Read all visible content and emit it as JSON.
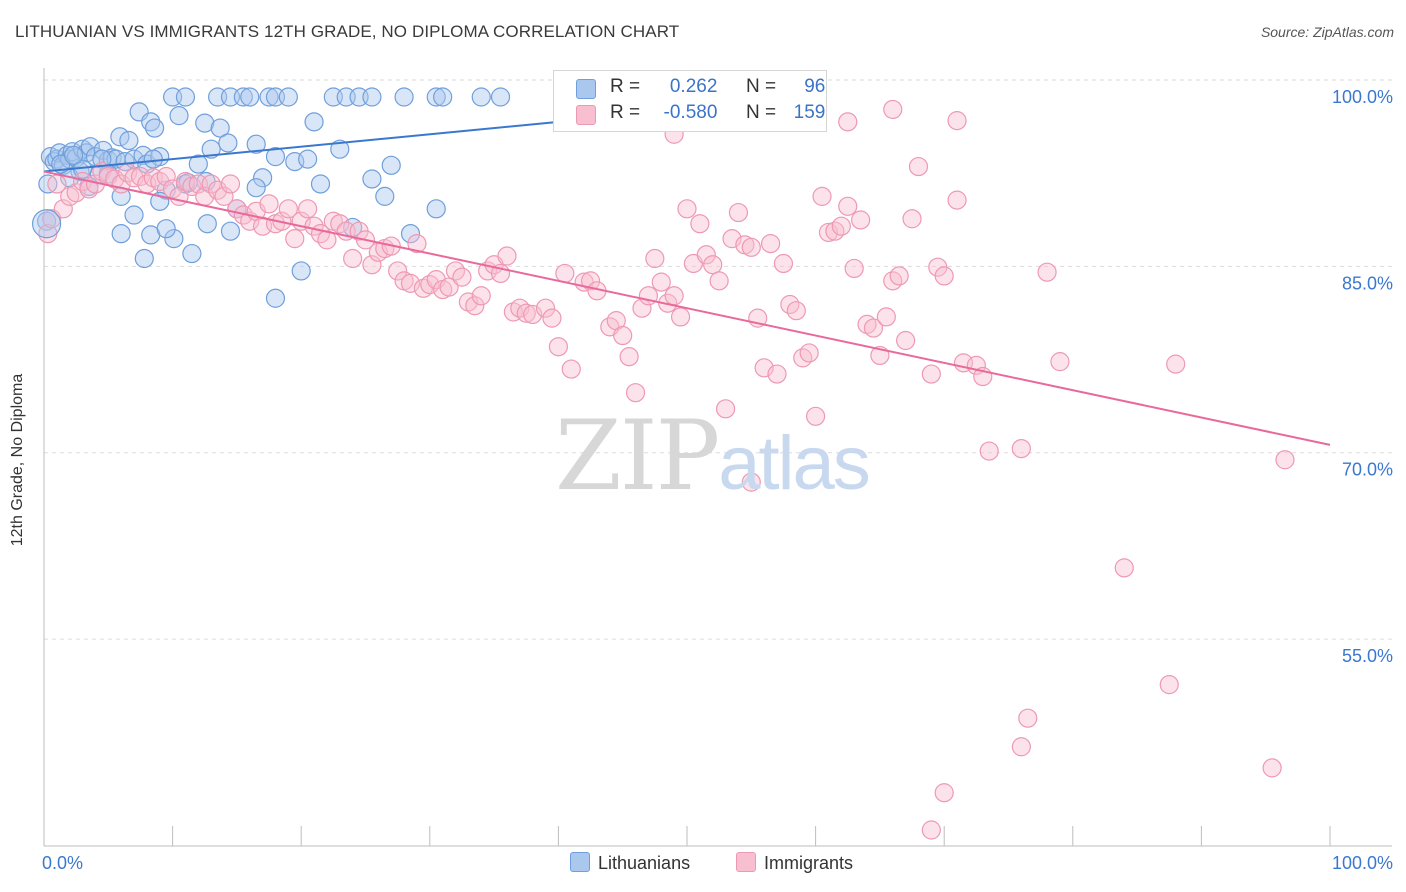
{
  "header": {
    "title": "LITHUANIAN VS IMMIGRANTS 12TH GRADE, NO DIPLOMA CORRELATION CHART",
    "source": "Source: ZipAtlas.com"
  },
  "watermark": {
    "part1": "ZIP",
    "part2": "atlas"
  },
  "legend": {
    "r_label": "R =",
    "n_label": "N =",
    "lithuanians": {
      "r": "0.262",
      "n": "96"
    },
    "immigrants": {
      "r": "-0.580",
      "n": "159"
    }
  },
  "bottom_legend": {
    "lithuanians": "Lithuanians",
    "immigrants": "Immigrants"
  },
  "colors": {
    "lithuanians_fill": "#aac8ee",
    "lithuanians_stroke": "#6f9fdc",
    "lithuanians_line": "#3a78d0",
    "immigrants_fill": "#f8bfd0",
    "immigrants_stroke": "#ee99b4",
    "immigrants_line": "#e8699a",
    "tick_label": "#3a78d0",
    "grid": "#dcdcdc"
  },
  "chart_data": {
    "type": "scatter",
    "title": "LITHUANIAN VS IMMIGRANTS 12TH GRADE, NO DIPLOMA CORRELATION CHART",
    "xlabel": "",
    "ylabel": "12th Grade, No Diploma",
    "xlim": [
      0,
      100
    ],
    "ylim": [
      40,
      101
    ],
    "x_tick_labels": [
      "0.0%",
      "100.0%"
    ],
    "y_ticks": [
      55,
      70,
      85,
      100
    ],
    "y_tick_labels": [
      "55.0%",
      "70.0%",
      "85.0%",
      "100.0%"
    ],
    "grid": true,
    "series": [
      {
        "name": "Lithuanians",
        "r": 0.262,
        "n": 96,
        "trend": {
          "x": [
            0,
            40
          ],
          "y": [
            94.0,
            98.0
          ]
        },
        "points": [
          [
            0.5,
            95.2
          ],
          [
            0.8,
            94.8
          ],
          [
            1.0,
            95.0
          ],
          [
            1.2,
            95.5
          ],
          [
            1.5,
            94.5
          ],
          [
            1.8,
            95.3
          ],
          [
            2.0,
            95.0
          ],
          [
            2.2,
            95.6
          ],
          [
            2.5,
            95.1
          ],
          [
            2.8,
            94.0
          ],
          [
            3.0,
            95.8
          ],
          [
            3.3,
            95.5
          ],
          [
            3.6,
            96.0
          ],
          [
            4.0,
            95.2
          ],
          [
            4.3,
            93.8
          ],
          [
            4.6,
            95.7
          ],
          [
            5.0,
            94.9
          ],
          [
            5.3,
            95.1
          ],
          [
            5.6,
            95.0
          ],
          [
            5.9,
            96.8
          ],
          [
            6.3,
            94.8
          ],
          [
            6.6,
            96.5
          ],
          [
            7.0,
            95.0
          ],
          [
            7.4,
            98.8
          ],
          [
            7.7,
            95.3
          ],
          [
            8.0,
            94.6
          ],
          [
            8.3,
            98.0
          ],
          [
            8.6,
            97.5
          ],
          [
            9.0,
            95.2
          ],
          [
            9.5,
            92.5
          ],
          [
            10.5,
            98.5
          ],
          [
            11.0,
            93.0
          ],
          [
            12.0,
            94.6
          ],
          [
            12.5,
            97.9
          ],
          [
            13.0,
            95.8
          ],
          [
            13.7,
            97.5
          ],
          [
            14.3,
            96.3
          ],
          [
            15.0,
            91.0
          ],
          [
            16.5,
            96.2
          ],
          [
            17.0,
            93.5
          ],
          [
            18.0,
            95.2
          ],
          [
            19.5,
            94.8
          ],
          [
            20.5,
            95.0
          ],
          [
            21.5,
            93.0
          ],
          [
            24.0,
            89.5
          ],
          [
            25.5,
            93.4
          ],
          [
            26.5,
            92.0
          ],
          [
            27.0,
            94.5
          ],
          [
            28.5,
            89.0
          ],
          [
            30.5,
            91.0
          ],
          [
            10.0,
            100.0
          ],
          [
            11.0,
            100.0
          ],
          [
            13.5,
            100.0
          ],
          [
            14.5,
            100.0
          ],
          [
            15.5,
            100.0
          ],
          [
            16.0,
            100.0
          ],
          [
            17.5,
            100.0
          ],
          [
            18.0,
            100.0
          ],
          [
            19.0,
            100.0
          ],
          [
            22.5,
            100.0
          ],
          [
            23.5,
            100.0
          ],
          [
            24.5,
            100.0
          ],
          [
            25.5,
            100.0
          ],
          [
            28.0,
            100.0
          ],
          [
            30.5,
            100.0
          ],
          [
            31.0,
            100.0
          ],
          [
            35.5,
            100.0
          ],
          [
            2.0,
            93.5
          ],
          [
            3.5,
            92.8
          ],
          [
            6.0,
            92.0
          ],
          [
            7.0,
            90.5
          ],
          [
            9.0,
            91.6
          ],
          [
            11.2,
            93.1
          ],
          [
            12.7,
            89.8
          ],
          [
            14.5,
            89.2
          ],
          [
            6.0,
            89.0
          ],
          [
            8.3,
            88.9
          ],
          [
            10.1,
            88.6
          ],
          [
            11.5,
            87.4
          ],
          [
            7.8,
            87.0
          ],
          [
            20.0,
            86.0
          ],
          [
            18.0,
            83.8
          ],
          [
            0.3,
            93.0
          ],
          [
            3.0,
            94.2
          ],
          [
            4.5,
            95.0
          ],
          [
            0.2,
            90.0
          ],
          [
            1.3,
            94.6
          ],
          [
            2.3,
            95.3
          ],
          [
            5.0,
            93.8
          ],
          [
            8.5,
            95.0
          ],
          [
            12.6,
            93.2
          ],
          [
            16.5,
            92.7
          ],
          [
            21.0,
            98.0
          ],
          [
            9.5,
            89.4
          ],
          [
            23.0,
            95.8
          ],
          [
            34.0,
            100.0
          ]
        ]
      },
      {
        "name": "Immigrants",
        "r": -0.58,
        "n": 159,
        "trend": {
          "x": [
            0,
            100
          ],
          "y": [
            94.0,
            72.0
          ]
        },
        "points": [
          [
            0.3,
            89.0
          ],
          [
            0.6,
            90.2
          ],
          [
            1.0,
            93.0
          ],
          [
            1.5,
            91.0
          ],
          [
            2.0,
            92.0
          ],
          [
            2.5,
            92.3
          ],
          [
            3.0,
            93.2
          ],
          [
            3.5,
            92.6
          ],
          [
            4.0,
            93.0
          ],
          [
            4.5,
            94.0
          ],
          [
            5.0,
            93.6
          ],
          [
            5.5,
            93.4
          ],
          [
            6.0,
            93.0
          ],
          [
            6.5,
            93.9
          ],
          [
            7.0,
            93.5
          ],
          [
            7.5,
            93.6
          ],
          [
            8.0,
            93.0
          ],
          [
            8.5,
            93.5
          ],
          [
            9.0,
            93.2
          ],
          [
            9.5,
            93.6
          ],
          [
            10.0,
            92.6
          ],
          [
            10.5,
            92.0
          ],
          [
            11.0,
            93.2
          ],
          [
            11.5,
            92.8
          ],
          [
            12.0,
            93.0
          ],
          [
            12.5,
            92.0
          ],
          [
            13.0,
            93.0
          ],
          [
            13.5,
            92.5
          ],
          [
            14.0,
            92.0
          ],
          [
            14.5,
            93.0
          ],
          [
            15.0,
            91.0
          ],
          [
            15.5,
            90.5
          ],
          [
            16.0,
            90.0
          ],
          [
            16.5,
            90.8
          ],
          [
            17.0,
            89.6
          ],
          [
            17.5,
            91.4
          ],
          [
            18.0,
            89.8
          ],
          [
            18.5,
            90.0
          ],
          [
            19.0,
            91.0
          ],
          [
            19.5,
            88.6
          ],
          [
            20.0,
            90.0
          ],
          [
            20.5,
            91.0
          ],
          [
            21.0,
            89.6
          ],
          [
            21.5,
            89.0
          ],
          [
            22.0,
            88.5
          ],
          [
            22.5,
            90.0
          ],
          [
            23.0,
            89.8
          ],
          [
            23.5,
            89.2
          ],
          [
            24.0,
            87.0
          ],
          [
            24.5,
            89.2
          ],
          [
            25.0,
            88.5
          ],
          [
            25.5,
            86.5
          ],
          [
            26.0,
            87.5
          ],
          [
            26.5,
            87.8
          ],
          [
            27.0,
            88.0
          ],
          [
            27.5,
            86.0
          ],
          [
            28.0,
            85.2
          ],
          [
            28.5,
            85.0
          ],
          [
            29.0,
            88.2
          ],
          [
            29.5,
            84.6
          ],
          [
            30.0,
            84.9
          ],
          [
            30.5,
            85.3
          ],
          [
            31.0,
            84.5
          ],
          [
            31.5,
            84.7
          ],
          [
            32.0,
            86.0
          ],
          [
            32.5,
            85.5
          ],
          [
            33.0,
            83.5
          ],
          [
            33.5,
            83.2
          ],
          [
            34.0,
            84.0
          ],
          [
            34.5,
            86.0
          ],
          [
            35.0,
            86.5
          ],
          [
            35.5,
            85.8
          ],
          [
            36.0,
            87.2
          ],
          [
            36.5,
            82.7
          ],
          [
            37.0,
            83.0
          ],
          [
            37.5,
            82.6
          ],
          [
            38.0,
            82.5
          ],
          [
            39.0,
            83.0
          ],
          [
            39.5,
            82.2
          ],
          [
            40.0,
            79.9
          ],
          [
            40.5,
            85.8
          ],
          [
            41.0,
            78.1
          ],
          [
            42.0,
            85.1
          ],
          [
            42.5,
            85.2
          ],
          [
            43.0,
            84.4
          ],
          [
            44.0,
            81.5
          ],
          [
            44.5,
            82.0
          ],
          [
            45.0,
            80.8
          ],
          [
            45.5,
            79.1
          ],
          [
            46.0,
            76.2
          ],
          [
            46.5,
            83.0
          ],
          [
            47.0,
            84.0
          ],
          [
            47.5,
            87.0
          ],
          [
            48.0,
            85.1
          ],
          [
            48.5,
            83.4
          ],
          [
            49.0,
            84.0
          ],
          [
            49.5,
            82.3
          ],
          [
            50.0,
            91.0
          ],
          [
            50.5,
            86.6
          ],
          [
            51.0,
            89.8
          ],
          [
            51.5,
            87.3
          ],
          [
            52.0,
            86.5
          ],
          [
            52.5,
            85.2
          ],
          [
            53.0,
            74.9
          ],
          [
            53.5,
            88.6
          ],
          [
            54.0,
            90.7
          ],
          [
            54.5,
            88.1
          ],
          [
            55.0,
            87.9
          ],
          [
            55.5,
            82.2
          ],
          [
            56.0,
            78.2
          ],
          [
            56.5,
            88.2
          ],
          [
            57.0,
            77.7
          ],
          [
            57.5,
            86.6
          ],
          [
            58.0,
            83.3
          ],
          [
            58.5,
            82.8
          ],
          [
            59.0,
            79.0
          ],
          [
            59.5,
            79.4
          ],
          [
            60.0,
            74.3
          ],
          [
            60.5,
            92.0
          ],
          [
            61.0,
            89.1
          ],
          [
            61.5,
            89.2
          ],
          [
            62.0,
            89.6
          ],
          [
            62.5,
            91.2
          ],
          [
            63.0,
            86.2
          ],
          [
            63.5,
            90.1
          ],
          [
            64.0,
            81.7
          ],
          [
            64.5,
            81.4
          ],
          [
            65.0,
            79.2
          ],
          [
            65.5,
            82.3
          ],
          [
            66.0,
            85.2
          ],
          [
            66.5,
            85.6
          ],
          [
            67.0,
            80.4
          ],
          [
            67.5,
            90.2
          ],
          [
            68.0,
            94.4
          ],
          [
            69.0,
            77.7
          ],
          [
            69.5,
            86.3
          ],
          [
            70.0,
            85.6
          ],
          [
            71.0,
            91.7
          ],
          [
            71.5,
            78.6
          ],
          [
            72.5,
            78.4
          ],
          [
            73.0,
            77.5
          ],
          [
            73.5,
            71.5
          ],
          [
            76.0,
            71.7
          ],
          [
            78.0,
            85.9
          ],
          [
            79.0,
            78.7
          ],
          [
            84.0,
            62.1
          ],
          [
            87.5,
            52.7
          ],
          [
            88.0,
            78.5
          ],
          [
            96.5,
            70.8
          ],
          [
            95.5,
            46.0
          ],
          [
            62.5,
            98.0
          ],
          [
            66.0,
            99.0
          ],
          [
            71.0,
            98.1
          ],
          [
            49.0,
            97.0
          ],
          [
            55.0,
            69.0
          ],
          [
            69.0,
            41.0
          ],
          [
            76.5,
            50.0
          ],
          [
            76.0,
            47.7
          ],
          [
            70.0,
            44.0
          ]
        ]
      }
    ]
  }
}
